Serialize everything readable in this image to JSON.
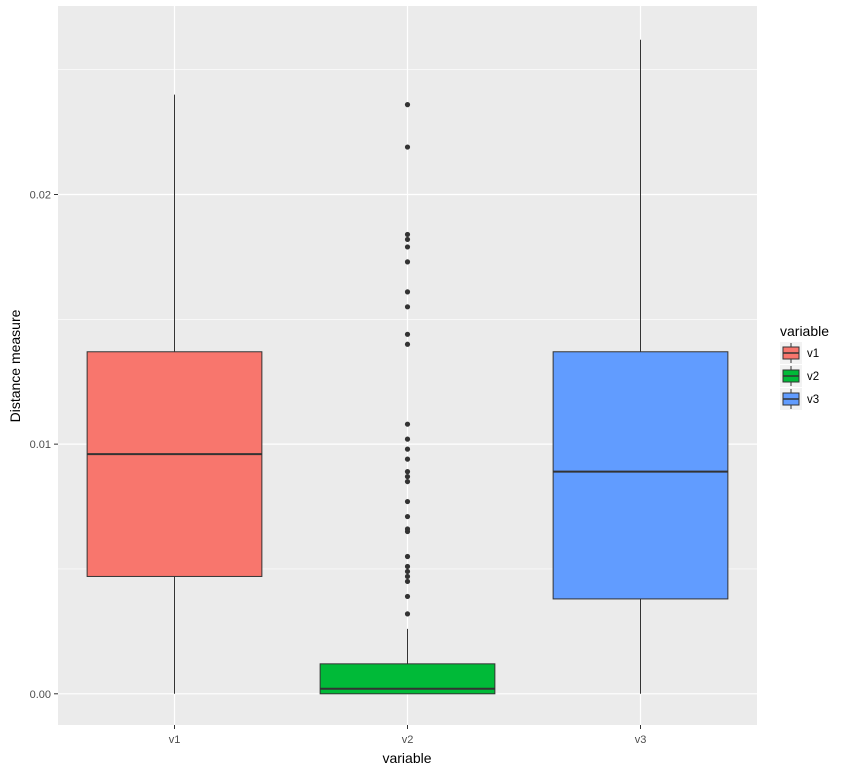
{
  "chart_data": {
    "type": "boxplot",
    "title": "",
    "xlabel": "variable",
    "ylabel": "Distance measure",
    "categories": [
      "v1",
      "v2",
      "v3"
    ],
    "ylim": [
      -0.00125,
      0.02755
    ],
    "yticks": [
      0.0,
      0.01,
      0.02
    ],
    "ytick_labels": [
      "0.00",
      "0.01",
      "0.02"
    ],
    "grid": true,
    "legend": {
      "title": "variable",
      "placement": "right",
      "entries": [
        "v1",
        "v2",
        "v3"
      ]
    },
    "boxes": [
      {
        "name": "v1",
        "color": "#F8766D",
        "min": 0.0,
        "q1": 0.0047,
        "median": 0.0096,
        "q3": 0.0137,
        "max": 0.024,
        "outliers": []
      },
      {
        "name": "v2",
        "color": "#00BA38",
        "min": 0.0,
        "q1": 0.0,
        "median": 0.0002,
        "q3": 0.0012,
        "max": 0.0026,
        "outliers": [
          0.0032,
          0.0039,
          0.0045,
          0.0047,
          0.0049,
          0.0051,
          0.0055,
          0.0065,
          0.0066,
          0.0071,
          0.0077,
          0.0085,
          0.0087,
          0.0089,
          0.0094,
          0.0098,
          0.0102,
          0.0108,
          0.014,
          0.0144,
          0.0155,
          0.0161,
          0.0173,
          0.0179,
          0.0182,
          0.0184,
          0.0219,
          0.0236
        ]
      },
      {
        "name": "v3",
        "color": "#619CFF",
        "min": 0.0,
        "q1": 0.0038,
        "median": 0.0089,
        "q3": 0.0137,
        "max": 0.0262,
        "outliers": []
      }
    ]
  }
}
